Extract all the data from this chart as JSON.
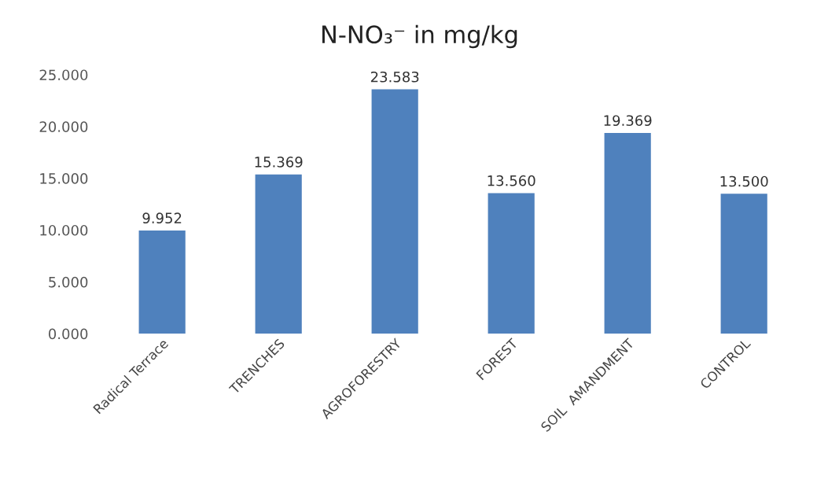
{
  "chart_data": {
    "type": "bar",
    "title": "N-NO₃⁻ in mg/kg",
    "categories": [
      "Radical Terrace",
      "TRENCHES",
      "AGROFORESTRY",
      "FOREST",
      "SOIL  AMANDMENT",
      "CONTROL"
    ],
    "values": [
      9.952,
      15.369,
      23.583,
      13.56,
      19.369,
      13.5
    ],
    "value_labels": [
      "9.952",
      "15.369",
      "23.583",
      "13.560",
      "19.369",
      "13.500"
    ],
    "color": "#4f81bd",
    "ylim": [
      0,
      25
    ],
    "yticks": [
      {
        "value": 0,
        "label": "0.000"
      },
      {
        "value": 5,
        "label": "5.000"
      },
      {
        "value": 10,
        "label": "10.000"
      },
      {
        "value": 15,
        "label": "15.000"
      },
      {
        "value": 20,
        "label": "20.000"
      },
      {
        "value": 25,
        "label": "25.000"
      }
    ],
    "grid": false,
    "legend": false
  }
}
